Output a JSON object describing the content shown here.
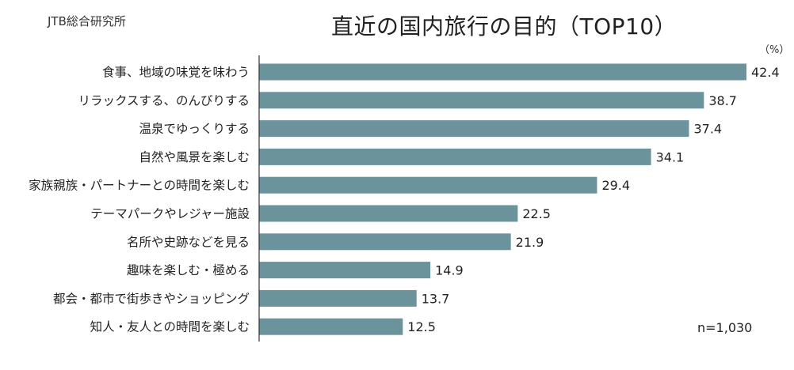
{
  "header": {
    "source": "JTB総合研究所",
    "title": "直近の国内旅行の目的（TOP10）",
    "unit": "（%）",
    "sample_size": "n=1,030"
  },
  "colors": {
    "bar": "#6a939c",
    "axis": "#333333"
  },
  "chart_data": {
    "type": "bar",
    "orientation": "horizontal",
    "title": "直近の国内旅行の目的（TOP10）",
    "unit": "%",
    "categories": [
      "食事、地域の味覚を味わう",
      "リラックスする、のんびりする",
      "温泉でゆっくりする",
      "自然や風景を楽しむ",
      "家族親族・パートナーとの時間を楽しむ",
      "テーマパークやレジャー施設",
      "名所や史跡などを見る",
      "趣味を楽しむ・極める",
      "都会・都市で街歩きやショッピング",
      "知人・友人との時間を楽しむ"
    ],
    "values": [
      42.4,
      38.7,
      37.4,
      34.1,
      29.4,
      22.5,
      21.9,
      14.9,
      13.7,
      12.5
    ],
    "value_labels": [
      "42.4",
      "38.7",
      "37.4",
      "34.1",
      "29.4",
      "22.5",
      "21.9",
      "14.9",
      "13.7",
      "12.5"
    ],
    "xlim": [
      0,
      42.4
    ],
    "grid": false,
    "legend": "none"
  }
}
